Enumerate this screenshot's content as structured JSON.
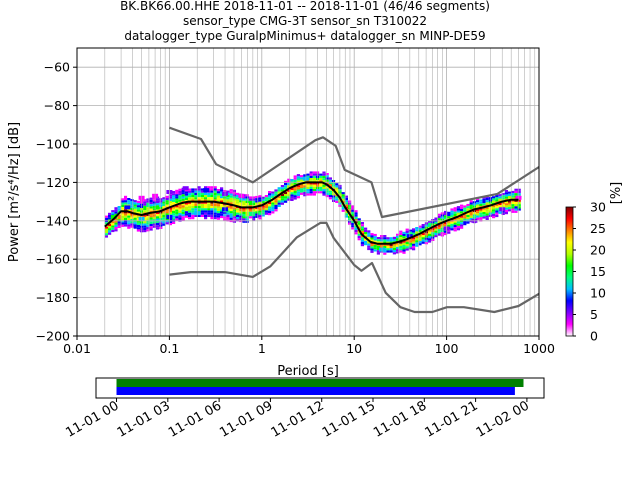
{
  "title": {
    "line1": "BK.BK66.00.HHE   2018-11-01 -- 2018-11-01  (46/46 segments)",
    "line2": "sensor_type CMG-3T sensor_sn T310022",
    "line3": "datalogger_type GuralpMinimus+ datalogger_sn MINP-DE59"
  },
  "chart_data": [
    {
      "type": "heatmap",
      "title": "BK.BK66.00.HHE   2018-11-01 -- 2018-11-01  (46/46 segments)",
      "xlabel": "Period [s]",
      "ylabel": "Power [m²/s⁴/Hz] [dB]",
      "xscale": "log",
      "xlim": [
        0.01,
        1000
      ],
      "ylim": [
        -200,
        -50
      ],
      "x_tick_labels": [
        "0.01",
        "0.1",
        "1",
        "10",
        "100",
        "1000"
      ],
      "x_tick_values": [
        0.01,
        0.1,
        1,
        10,
        100,
        1000
      ],
      "y_tick_labels": [
        "-60",
        "-80",
        "-100",
        "-120",
        "-140",
        "-160",
        "-180",
        "-200"
      ],
      "y_tick_values": [
        -60,
        -80,
        -100,
        -120,
        -140,
        -160,
        -180,
        -200
      ],
      "grid": true,
      "colorbar": {
        "label": "[%]",
        "range": [
          0,
          30
        ],
        "tick_labels": [
          "0",
          "5",
          "10",
          "15",
          "20",
          "25",
          "30"
        ],
        "tick_values": [
          0,
          5,
          10,
          15,
          20,
          25,
          30
        ],
        "colors": [
          "#ffffff",
          "#ff00ff",
          "#7d00ff",
          "#0000ff",
          "#00bfff",
          "#00ff7f",
          "#00ff00",
          "#b4ff00",
          "#ffff00",
          "#ff7f00",
          "#ff0000",
          "#800000"
        ]
      },
      "mean_curve": {
        "color": "#000000",
        "x": [
          0.02,
          0.025,
          0.03,
          0.035,
          0.04,
          0.05,
          0.06,
          0.08,
          0.1,
          0.13,
          0.16,
          0.2,
          0.25,
          0.3,
          0.4,
          0.5,
          0.6,
          0.8,
          1,
          1.3,
          1.6,
          2,
          2.5,
          3,
          3.5,
          4,
          4.5,
          5,
          6,
          7,
          8,
          10,
          12,
          15,
          18,
          20,
          25,
          30,
          35,
          40,
          50,
          60,
          80,
          100,
          130,
          160,
          200,
          250,
          300,
          400,
          500,
          600
        ],
        "y": [
          -143,
          -139,
          -135,
          -135,
          -136,
          -137,
          -136,
          -135,
          -133,
          -131,
          -130,
          -130,
          -130,
          -130,
          -131,
          -132,
          -133,
          -133,
          -132,
          -129,
          -126,
          -123,
          -121,
          -120,
          -120,
          -120,
          -120,
          -121,
          -124,
          -128,
          -133,
          -140,
          -147,
          -151,
          -152,
          -152,
          -152,
          -151,
          -150,
          -149,
          -147,
          -145,
          -142,
          -140,
          -138,
          -136,
          -134,
          -133,
          -132,
          -130,
          -129,
          -129
        ]
      },
      "high_noise_model": {
        "color": "#666666",
        "x": [
          0.1,
          0.22,
          0.32,
          0.8,
          3.8,
          4.6,
          6.3,
          7.9,
          15.4,
          20,
          354.8,
          1000
        ],
        "y": [
          -91.5,
          -97.4,
          -110.5,
          -120,
          -98,
          -96.5,
          -101,
          -113.5,
          -120,
          -138,
          -126,
          -112
        ]
      },
      "low_noise_model": {
        "color": "#666666",
        "x": [
          0.1,
          0.17,
          0.4,
          0.8,
          1.24,
          2.4,
          4.3,
          5,
          6,
          10,
          12,
          15.6,
          21.9,
          31.6,
          45,
          70,
          101,
          154,
          328,
          600,
          1000
        ],
        "y": [
          -168,
          -166.7,
          -166.7,
          -169.2,
          -163.7,
          -148.6,
          -141.1,
          -141.1,
          -149,
          -163,
          -166,
          -162,
          -177.5,
          -185,
          -187.5,
          -187.5,
          -185,
          -185,
          -187.5,
          -184.4,
          -178
        ]
      },
      "density_cells": [
        {
          "x": 0.025,
          "y": -138,
          "pct": 15
        },
        {
          "x": 0.035,
          "y": -133,
          "pct": 8
        },
        {
          "x": 0.05,
          "y": -128,
          "pct": 3
        },
        {
          "x": 0.07,
          "y": -127,
          "pct": 4
        },
        {
          "x": 0.1,
          "y": -125,
          "pct": 5
        },
        {
          "x": 0.15,
          "y": -123,
          "pct": 6
        },
        {
          "x": 0.25,
          "y": -124,
          "pct": 8
        },
        {
          "x": 0.4,
          "y": -126,
          "pct": 6
        },
        {
          "x": 0.6,
          "y": -127,
          "pct": 4
        },
        {
          "x": 0.05,
          "y": -139,
          "pct": 10
        },
        {
          "x": 0.1,
          "y": -138,
          "pct": 8
        },
        {
          "x": 0.2,
          "y": -136,
          "pct": 10
        },
        {
          "x": 0.4,
          "y": -134,
          "pct": 8
        },
        {
          "x": 3,
          "y": -118,
          "pct": 12
        },
        {
          "x": 20,
          "y": -155,
          "pct": 12
        },
        {
          "x": 40,
          "y": -148,
          "pct": 8
        },
        {
          "x": 100,
          "y": -144,
          "pct": 6
        },
        {
          "x": 200,
          "y": -140,
          "pct": 5
        },
        {
          "x": 400,
          "y": -134,
          "pct": 5
        },
        {
          "x": 600,
          "y": -128,
          "pct": 4
        }
      ]
    },
    {
      "type": "bar",
      "title": "",
      "xlabel": "",
      "x_tick_labels": [
        "11-01 00",
        "11-01 03",
        "11-01 06",
        "11-01 09",
        "11-01 12",
        "11-01 15",
        "11-01 18",
        "11-01 21",
        "11-02 00"
      ],
      "x_tick_values_hours": [
        0,
        3,
        6,
        9,
        12,
        15,
        18,
        21,
        24
      ],
      "xlim_hours": [
        -1.2,
        25
      ],
      "series": [
        {
          "color": "#008000",
          "start_hour": 0.0,
          "end_hour": 23.8
        },
        {
          "color": "#0000ff",
          "start_hour": 0.0,
          "end_hour": 23.3
        }
      ]
    }
  ]
}
